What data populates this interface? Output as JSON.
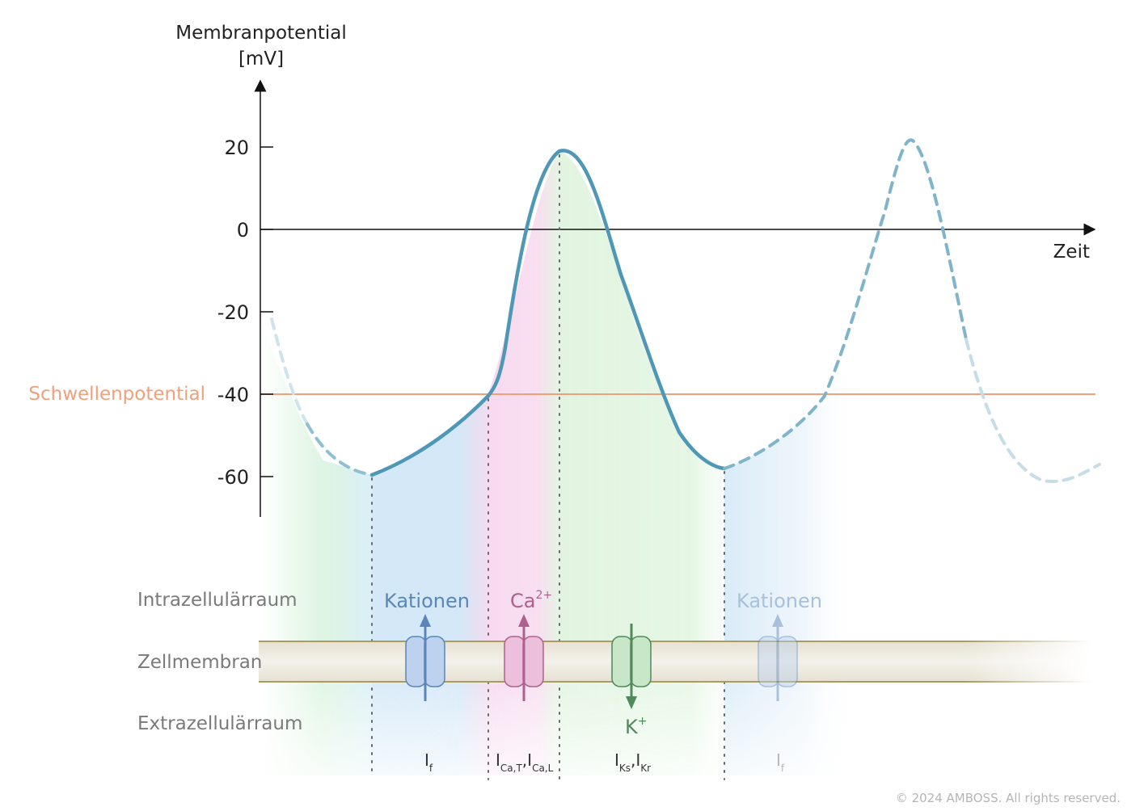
{
  "axes": {
    "y_title_line1": "Membranpotential",
    "y_title_line2": "[mV]",
    "x_title": "Zeit",
    "y_ticks": [
      "20",
      "0",
      "-20",
      "-40",
      "-60"
    ]
  },
  "threshold": {
    "label": "Schwellenpotential",
    "value_mV": -40,
    "color": "#f0a07a"
  },
  "curve": {
    "color": "#4e97b7",
    "min_mV": -60,
    "peak_mV": 19,
    "second_peak_mV": 22
  },
  "membrane": {
    "intracellular_label": "Intrazellulärraum",
    "membrane_label": "Zellmembran",
    "extracellular_label": "Extrazellulärraum"
  },
  "ions": {
    "cations": "Kationen",
    "calcium_base": "Ca",
    "calcium_sup": "2+",
    "potassium_base": "K",
    "potassium_sup": "+",
    "cations_repeat": "Kationen"
  },
  "currents": {
    "i_f": {
      "base": "I",
      "sub": "f"
    },
    "i_ca": {
      "base1": "I",
      "sub1": "Ca,T",
      "sep": ",",
      "base2": "I",
      "sub2": "Ca,L"
    },
    "i_k": {
      "base1": "I",
      "sub1": "Ks",
      "sep": ",",
      "base2": "I",
      "sub2": "Kr"
    },
    "i_f_repeat": {
      "base": "I",
      "sub": "f"
    }
  },
  "colors": {
    "cation_blue": "#5a86b8",
    "calcium_pink": "#b0608c",
    "potassium_green": "#4e8a5a",
    "axis": "#111111",
    "label_gray": "#7a7a7a"
  },
  "copyright": "© 2024 AMBOSS. All rights reserved."
}
